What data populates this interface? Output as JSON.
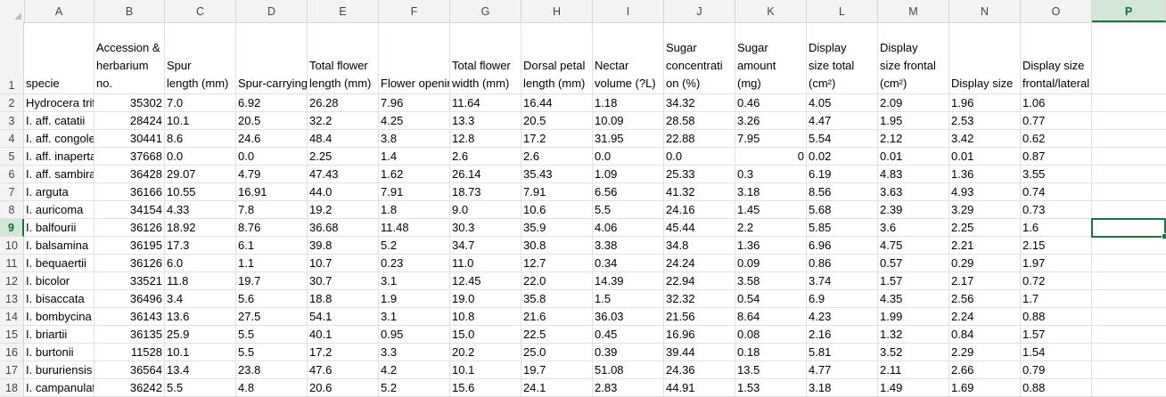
{
  "spreadsheet": {
    "columns": [
      "A",
      "B",
      "C",
      "D",
      "E",
      "F",
      "G",
      "H",
      "I",
      "J",
      "K",
      "L",
      "M",
      "N",
      "O",
      "P"
    ],
    "selected_column": "P",
    "selected_row": 9,
    "header_row": {
      "row_number": "1",
      "cells": [
        "specie",
        "Accession &\nherbarium\nno.",
        "Spur\nlength (mm)",
        "Spur-carrying",
        "Total  flower\nlength (mm)",
        "Flower opening",
        "Total  flower\nwidth (mm)",
        "Dorsal petal\nlength (mm)",
        "Nectar\nvolume (?L)",
        "Sugar\nconcentrati\non (%)",
        "Sugar\namount\n(mg)",
        "Display\nsize total\n(cm²)",
        "Display\nsize frontal\n(cm²)",
        "Display size",
        "Display size frontal/lateral",
        ""
      ]
    },
    "rows": [
      {
        "n": "2",
        "c": [
          "Hydrocera triflora",
          "35302",
          "7.0",
          "6.92",
          "26.28",
          "7.96",
          "11.64",
          "16.44",
          "1.18",
          "34.32",
          "0.46",
          "4.05",
          "2.09",
          "1.96",
          "1.06",
          ""
        ]
      },
      {
        "n": "3",
        "c": [
          "I. aff. catatii",
          "28424",
          "10.1",
          "20.5",
          "32.2",
          "4.25",
          "13.3",
          "20.5",
          "10.09",
          "28.58",
          "3.26",
          "4.47",
          "1.95",
          "2.53",
          "0.77",
          ""
        ]
      },
      {
        "n": "4",
        "c": [
          "I. aff. congolensis",
          "30441",
          "8.6",
          "24.6",
          "48.4",
          "3.8",
          "12.8",
          "17.2",
          "31.95",
          "22.88",
          "7.95",
          "5.54",
          "2.12",
          "3.42",
          "0.62",
          ""
        ]
      },
      {
        "n": "5",
        "c": [
          "I. aff. inaperta",
          "37668",
          "0.0",
          "0.0",
          "2.25",
          "1.4",
          "2.6",
          "2.6",
          "0.0",
          "0.0",
          "0",
          "0.02",
          "0.01",
          "0.01",
          "0.87",
          ""
        ]
      },
      {
        "n": "6",
        "c": [
          "I. aff. sambiranensis",
          "36428",
          "29.07",
          "4.79",
          "47.43",
          "1.62",
          "26.14",
          "35.43",
          "1.09",
          "25.33",
          "0.3",
          "6.19",
          "4.83",
          "1.36",
          "3.55",
          ""
        ]
      },
      {
        "n": "7",
        "c": [
          "I. arguta",
          "36166",
          "10.55",
          "16.91",
          "44.0",
          "7.91",
          "18.73",
          "7.91",
          "6.56",
          "41.32",
          "3.18",
          "8.56",
          "3.63",
          "4.93",
          "0.74",
          ""
        ]
      },
      {
        "n": "8",
        "c": [
          "I. auricoma",
          "34154",
          "4.33",
          "7.8",
          "19.2",
          "1.8",
          "9.0",
          "10.6",
          "5.5",
          "24.16",
          "1.45",
          "5.68",
          "2.39",
          "3.29",
          "0.73",
          ""
        ]
      },
      {
        "n": "9",
        "c": [
          "I. balfourii",
          "36126",
          "18.92",
          "8.76",
          "36.68",
          "11.48",
          "30.3",
          "35.9",
          "4.06",
          "45.44",
          "2.2",
          "5.85",
          "3.6",
          "2.25",
          "1.6",
          ""
        ]
      },
      {
        "n": "10",
        "c": [
          "I. balsamina",
          "36195",
          "17.3",
          "6.1",
          "39.8",
          "5.2",
          "34.7",
          "30.8",
          "3.38",
          "34.8",
          "1.36",
          "6.96",
          "4.75",
          "2.21",
          "2.15",
          ""
        ]
      },
      {
        "n": "11",
        "c": [
          "I. bequaertii",
          "36126",
          "6.0",
          "1.1",
          "10.7",
          "0.23",
          "11.0",
          "12.7",
          "0.34",
          "24.24",
          "0.09",
          "0.86",
          "0.57",
          "0.29",
          "1.97",
          ""
        ]
      },
      {
        "n": "12",
        "c": [
          "I. bicolor",
          "33521",
          "11.8",
          "19.7",
          "30.7",
          "3.1",
          "12.45",
          "22.0",
          "14.39",
          "22.94",
          "3.58",
          "3.74",
          "1.57",
          "2.17",
          "0.72",
          ""
        ]
      },
      {
        "n": "13",
        "c": [
          "I. bisaccata",
          "36496",
          "3.4",
          "5.6",
          "18.8",
          "1.9",
          "19.0",
          "35.8",
          "1.5",
          "32.32",
          "0.54",
          "6.9",
          "4.35",
          "2.56",
          "1.7",
          ""
        ]
      },
      {
        "n": "14",
        "c": [
          "I. bombycina",
          "36143",
          "13.6",
          "27.5",
          "54.1",
          "3.1",
          "10.8",
          "21.6",
          "36.03",
          "21.56",
          "8.64",
          "4.23",
          "1.99",
          "2.24",
          "0.88",
          ""
        ]
      },
      {
        "n": "15",
        "c": [
          "I. briartii",
          "36135",
          "25.9",
          "5.5",
          "40.1",
          "0.95",
          "15.0",
          "22.5",
          "0.45",
          "16.96",
          "0.08",
          "2.16",
          "1.32",
          "0.84",
          "1.57",
          ""
        ]
      },
      {
        "n": "16",
        "c": [
          "I. burtonii",
          "11528",
          "10.1",
          "5.5",
          "17.2",
          "3.3",
          "20.2",
          "25.0",
          "0.39",
          "39.44",
          "0.18",
          "5.81",
          "3.52",
          "2.29",
          "1.54",
          ""
        ]
      },
      {
        "n": "17",
        "c": [
          "I. bururiensis",
          "36564",
          "13.4",
          "23.8",
          "47.6",
          "4.2",
          "10.1",
          "19.7",
          "51.08",
          "24.36",
          "13.5",
          "4.77",
          "2.11",
          "2.66",
          "0.79",
          ""
        ]
      },
      {
        "n": "18",
        "c": [
          "I. campanulata",
          "36242",
          "5.5",
          "4.8",
          "20.6",
          "5.2",
          "15.6",
          "24.1",
          "2.83",
          "44.91",
          "1.53",
          "3.18",
          "1.49",
          "1.69",
          "0.88",
          ""
        ]
      }
    ]
  }
}
